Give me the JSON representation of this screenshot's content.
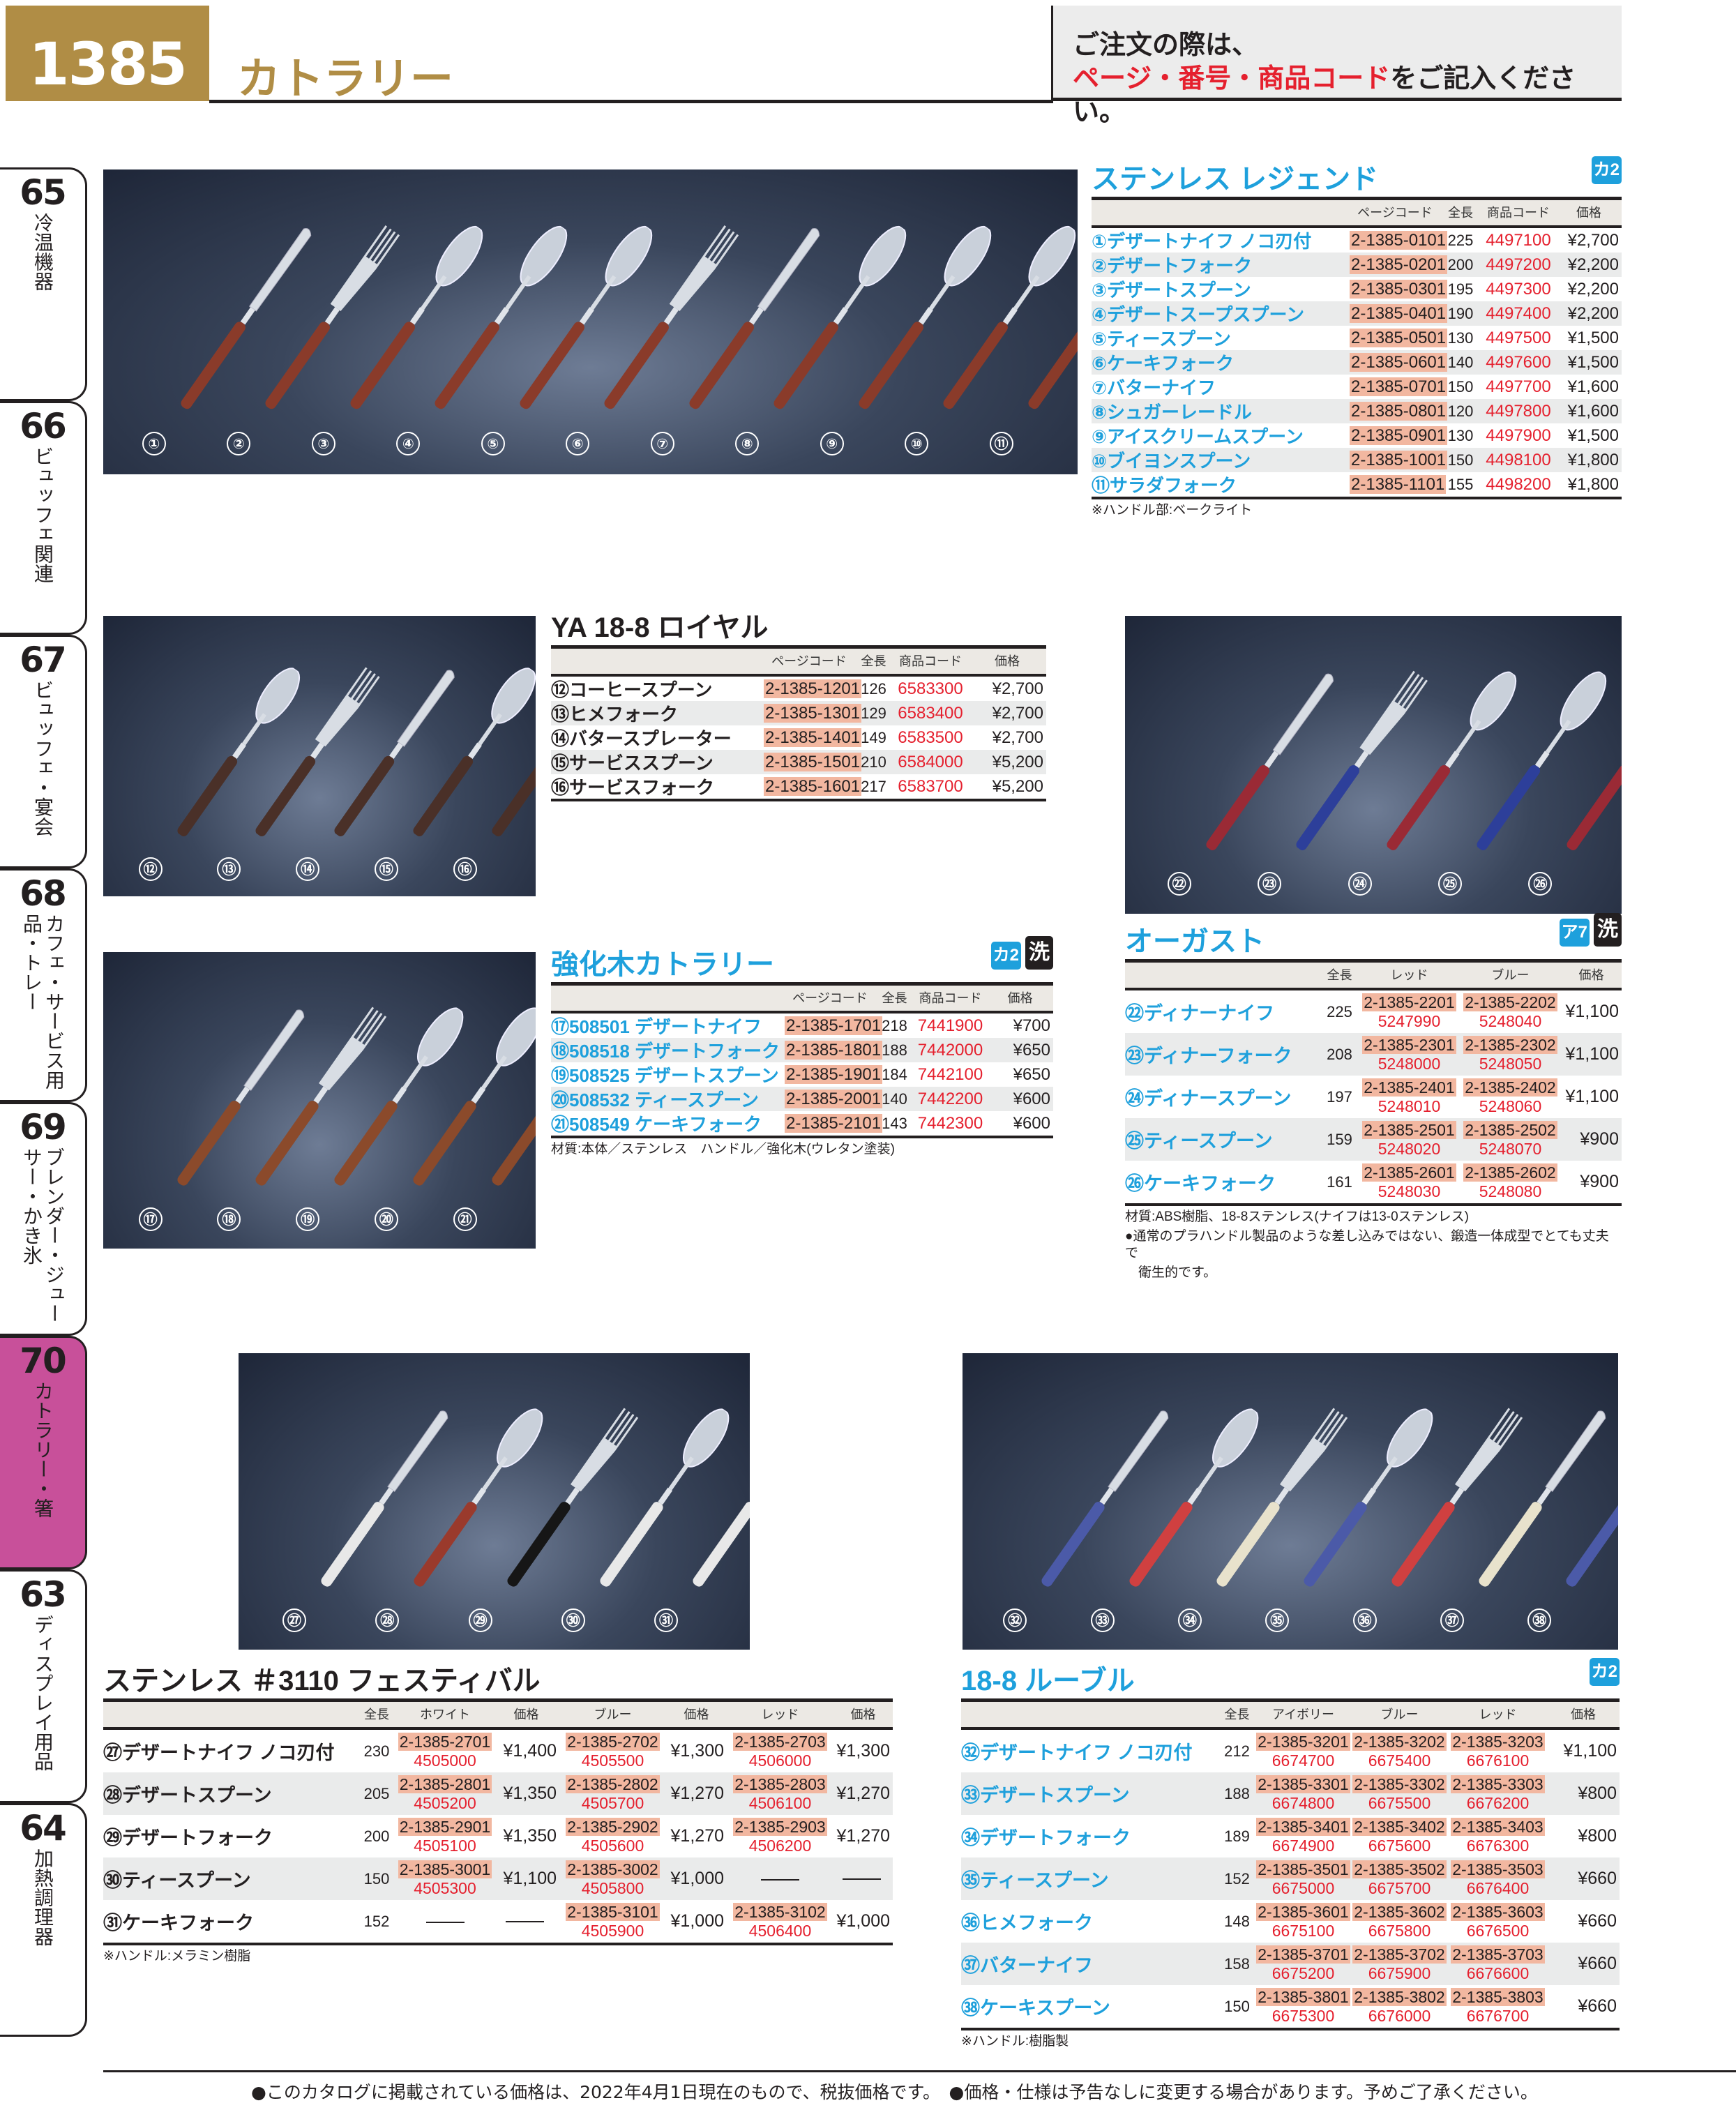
{
  "header": {
    "page_number": "1385",
    "title": "カトラリー",
    "notice_line1": "ご注文の際は、",
    "notice_red": "ページ・番号・商品コード",
    "notice_rest": "をご記入ください。"
  },
  "side_tabs": [
    {
      "num": "65",
      "label": "冷温機器",
      "active": false
    },
    {
      "num": "66",
      "label": "ビュッフェ関連",
      "active": false
    },
    {
      "num": "67",
      "label": "ビュッフェ・宴会",
      "active": false
    },
    {
      "num": "68",
      "label": "カフェ・サービス用品・トレー",
      "active": false
    },
    {
      "num": "69",
      "label": "ブレンダー・ジューサー・かき氷",
      "active": false
    },
    {
      "num": "70",
      "label": "カトラリー・箸",
      "active": true
    },
    {
      "num": "63",
      "label": "ディスプレイ用品",
      "active": false
    },
    {
      "num": "64",
      "label": "加熱調理器",
      "active": false
    }
  ],
  "colors": {
    "accent_blue": "#1ea0dc",
    "gold": "#b08d45",
    "red": "#e5202e",
    "code_highlight": "#f2b7a0",
    "active_tab": "#c8509a"
  },
  "photos": [
    {
      "items": [
        {
          "label": "①",
          "type": "knife",
          "handle": "#8a3b2a"
        },
        {
          "label": "②",
          "type": "fork",
          "handle": "#8a3b2a"
        },
        {
          "label": "③",
          "type": "spoon",
          "handle": "#8a3b2a"
        },
        {
          "label": "④",
          "type": "spoon",
          "handle": "#8a3b2a"
        },
        {
          "label": "⑤",
          "type": "spoon",
          "handle": "#8a3b2a"
        },
        {
          "label": "⑥",
          "type": "fork",
          "handle": "#8a3b2a"
        },
        {
          "label": "⑦",
          "type": "knife",
          "handle": "#8a3b2a"
        },
        {
          "label": "⑧",
          "type": "spoon",
          "handle": "#8a3b2a"
        },
        {
          "label": "⑨",
          "type": "spoon",
          "handle": "#8a3b2a"
        },
        {
          "label": "⑩",
          "type": "spoon",
          "handle": "#8a3b2a"
        },
        {
          "label": "⑪",
          "type": "fork",
          "handle": "#8a3b2a"
        }
      ]
    },
    {
      "items": [
        {
          "label": "⑫",
          "type": "spoon",
          "handle": "#4a3028"
        },
        {
          "label": "⑬",
          "type": "fork",
          "handle": "#4a3028"
        },
        {
          "label": "⑭",
          "type": "knife",
          "handle": "#4a3028"
        },
        {
          "label": "⑮",
          "type": "spoon",
          "handle": "#4a3028"
        },
        {
          "label": "⑯",
          "type": "fork",
          "handle": "#4a3028"
        }
      ]
    },
    {
      "items": [
        {
          "label": "㉒",
          "type": "knife",
          "handle": "#9a2a35"
        },
        {
          "label": "㉓",
          "type": "fork",
          "handle": "#2d3f9a"
        },
        {
          "label": "㉔",
          "type": "spoon",
          "handle": "#9a2a35"
        },
        {
          "label": "㉕",
          "type": "spoon",
          "handle": "#2d3f9a"
        },
        {
          "label": "㉖",
          "type": "fork",
          "handle": "#9a2a35"
        }
      ]
    },
    {
      "items": [
        {
          "label": "⑰",
          "type": "knife",
          "handle": "#8b4a2b"
        },
        {
          "label": "⑱",
          "type": "fork",
          "handle": "#8b4a2b"
        },
        {
          "label": "⑲",
          "type": "spoon",
          "handle": "#8b4a2b"
        },
        {
          "label": "⑳",
          "type": "spoon",
          "handle": "#8b4a2b"
        },
        {
          "label": "㉑",
          "type": "fork",
          "handle": "#8b4a2b"
        }
      ]
    },
    {
      "items": [
        {
          "label": "㉗",
          "type": "knife",
          "handle": "#e8e8e8"
        },
        {
          "label": "㉘",
          "type": "spoon",
          "handle": "#9a3a2c"
        },
        {
          "label": "㉙",
          "type": "fork",
          "handle": "#161616"
        },
        {
          "label": "㉚",
          "type": "spoon",
          "handle": "#e8e8e8"
        },
        {
          "label": "㉛",
          "type": "fork",
          "handle": "#e8e8e8"
        }
      ]
    },
    {
      "items": [
        {
          "label": "㉜",
          "type": "knife",
          "handle": "#4b5aa8"
        },
        {
          "label": "㉝",
          "type": "spoon",
          "handle": "#d04040"
        },
        {
          "label": "㉞",
          "type": "fork",
          "handle": "#e8e2cc"
        },
        {
          "label": "㉟",
          "type": "spoon",
          "handle": "#4b5aa8"
        },
        {
          "label": "㊱",
          "type": "fork",
          "handle": "#d04040"
        },
        {
          "label": "㊲",
          "type": "knife",
          "handle": "#e8e2cc"
        },
        {
          "label": "㊳",
          "type": "spoon",
          "handle": "#4b5aa8"
        }
      ]
    }
  ],
  "tables": {
    "legend": {
      "title": "ステンレス レジェンド",
      "badges": [
        {
          "label": "カ2",
          "style": "blue"
        }
      ],
      "columns": [
        "",
        "ページコード",
        "全長",
        "商品コード",
        "価格"
      ],
      "rows": [
        {
          "num": "①",
          "name": "デザートナイフ ノコ刃付",
          "page_code": "2-1385-0101",
          "length": "225",
          "product_code": "4497100",
          "price": "¥2,700"
        },
        {
          "num": "②",
          "name": "デザートフォーク",
          "page_code": "2-1385-0201",
          "length": "200",
          "product_code": "4497200",
          "price": "¥2,200"
        },
        {
          "num": "③",
          "name": "デザートスプーン",
          "page_code": "2-1385-0301",
          "length": "195",
          "product_code": "4497300",
          "price": "¥2,200"
        },
        {
          "num": "④",
          "name": "デザートスープスプーン",
          "page_code": "2-1385-0401",
          "length": "190",
          "product_code": "4497400",
          "price": "¥2,200"
        },
        {
          "num": "⑤",
          "name": "ティースプーン",
          "page_code": "2-1385-0501",
          "length": "130",
          "product_code": "4497500",
          "price": "¥1,500"
        },
        {
          "num": "⑥",
          "name": "ケーキフォーク",
          "page_code": "2-1385-0601",
          "length": "140",
          "product_code": "4497600",
          "price": "¥1,500"
        },
        {
          "num": "⑦",
          "name": "バターナイフ",
          "page_code": "2-1385-0701",
          "length": "150",
          "product_code": "4497700",
          "price": "¥1,600"
        },
        {
          "num": "⑧",
          "name": "シュガーレードル",
          "page_code": "2-1385-0801",
          "length": "120",
          "product_code": "4497800",
          "price": "¥1,600"
        },
        {
          "num": "⑨",
          "name": "アイスクリームスプーン",
          "page_code": "2-1385-0901",
          "length": "130",
          "product_code": "4497900",
          "price": "¥1,500"
        },
        {
          "num": "⑩",
          "name": "ブイヨンスプーン",
          "page_code": "2-1385-1001",
          "length": "150",
          "product_code": "4498100",
          "price": "¥1,800"
        },
        {
          "num": "⑪",
          "name": "サラダフォーク",
          "page_code": "2-1385-1101",
          "length": "155",
          "product_code": "4498200",
          "price": "¥1,800"
        }
      ],
      "notes": [
        "※ハンドル部:ベークライト"
      ]
    },
    "royal": {
      "title": "YA 18-8 ロイヤル",
      "badges": [],
      "columns": [
        "",
        "ページコード",
        "全長",
        "商品コード",
        "価格"
      ],
      "rows": [
        {
          "num": "⑫",
          "name": "コーヒースプーン",
          "page_code": "2-1385-1201",
          "length": "126",
          "product_code": "6583300",
          "price": "¥2,700"
        },
        {
          "num": "⑬",
          "name": "ヒメフォーク",
          "page_code": "2-1385-1301",
          "length": "129",
          "product_code": "6583400",
          "price": "¥2,700"
        },
        {
          "num": "⑭",
          "name": "バタースプレーター",
          "page_code": "2-1385-1401",
          "length": "149",
          "product_code": "6583500",
          "price": "¥2,700"
        },
        {
          "num": "⑮",
          "name": "サービススプーン",
          "page_code": "2-1385-1501",
          "length": "210",
          "product_code": "6584000",
          "price": "¥5,200"
        },
        {
          "num": "⑯",
          "name": "サービスフォーク",
          "page_code": "2-1385-1601",
          "length": "217",
          "product_code": "6583700",
          "price": "¥5,200"
        }
      ],
      "notes": []
    },
    "wood": {
      "title": "強化木カトラリー",
      "badges": [
        {
          "label": "カ2",
          "style": "blue"
        },
        {
          "label": "洗",
          "style": "black"
        }
      ],
      "columns": [
        "",
        "ページコード",
        "全長",
        "商品コード",
        "価格"
      ],
      "rows": [
        {
          "num": "⑰",
          "name": "508501 デザートナイフ",
          "page_code": "2-1385-1701",
          "length": "218",
          "product_code": "7441900",
          "price": "¥700"
        },
        {
          "num": "⑱",
          "name": "508518 デザートフォーク",
          "page_code": "2-1385-1801",
          "length": "188",
          "product_code": "7442000",
          "price": "¥650"
        },
        {
          "num": "⑲",
          "name": "508525 デザートスプーン",
          "page_code": "2-1385-1901",
          "length": "184",
          "product_code": "7442100",
          "price": "¥650"
        },
        {
          "num": "⑳",
          "name": "508532 ティースプーン",
          "page_code": "2-1385-2001",
          "length": "140",
          "product_code": "7442200",
          "price": "¥600"
        },
        {
          "num": "㉑",
          "name": "508549 ケーキフォーク",
          "page_code": "2-1385-2101",
          "length": "143",
          "product_code": "7442300",
          "price": "¥600"
        }
      ],
      "notes": [
        "材質:本体／ステンレス　ハンドル／強化木(ウレタン塗装)"
      ]
    },
    "august": {
      "title": "オーガスト",
      "badges": [
        {
          "label": "ア7",
          "style": "blue"
        },
        {
          "label": "洗",
          "style": "black"
        }
      ],
      "columns": [
        "",
        "全長",
        "レッド",
        "ブルー",
        "価格"
      ],
      "rows": [
        {
          "num": "㉒",
          "name": "ディナーナイフ",
          "length": "225",
          "variants": [
            {
              "page_code": "2-1385-2201",
              "product_code": "5247990"
            },
            {
              "page_code": "2-1385-2202",
              "product_code": "5248040"
            }
          ],
          "prices": [
            "¥1,100"
          ]
        },
        {
          "num": "㉓",
          "name": "ディナーフォーク",
          "length": "208",
          "variants": [
            {
              "page_code": "2-1385-2301",
              "product_code": "5248000"
            },
            {
              "page_code": "2-1385-2302",
              "product_code": "5248050"
            }
          ],
          "prices": [
            "¥1,100"
          ]
        },
        {
          "num": "㉔",
          "name": "ディナースプーン",
          "length": "197",
          "variants": [
            {
              "page_code": "2-1385-2401",
              "product_code": "5248010"
            },
            {
              "page_code": "2-1385-2402",
              "product_code": "5248060"
            }
          ],
          "prices": [
            "¥1,100"
          ]
        },
        {
          "num": "㉕",
          "name": "ティースプーン",
          "length": "159",
          "variants": [
            {
              "page_code": "2-1385-2501",
              "product_code": "5248020"
            },
            {
              "page_code": "2-1385-2502",
              "product_code": "5248070"
            }
          ],
          "prices": [
            "¥900"
          ]
        },
        {
          "num": "㉖",
          "name": "ケーキフォーク",
          "length": "161",
          "variants": [
            {
              "page_code": "2-1385-2601",
              "product_code": "5248030"
            },
            {
              "page_code": "2-1385-2602",
              "product_code": "5248080"
            }
          ],
          "prices": [
            "¥900"
          ]
        }
      ],
      "notes": [
        "材質:ABS樹脂、18-8ステンレス(ナイフは13-0ステンレス)",
        "●通常のプラハンドル製品のような差し込みではない、鍛造一体成型でとても丈夫で",
        "　衛生的です。"
      ]
    },
    "festival": {
      "title": "ステンレス ＃3110 フェスティバル",
      "badges": [],
      "columns": [
        "",
        "全長",
        "ホワイト",
        "価格",
        "ブルー",
        "価格",
        "レッド",
        "価格"
      ],
      "rows": [
        {
          "num": "㉗",
          "name": "デザートナイフ ノコ刃付",
          "length": "230",
          "variants": [
            {
              "page_code": "2-1385-2701",
              "product_code": "4505000"
            },
            {
              "page_code": "2-1385-2702",
              "product_code": "4505500"
            },
            {
              "page_code": "2-1385-2703",
              "product_code": "4506000"
            }
          ],
          "prices": [
            "¥1,400",
            "¥1,300",
            "¥1,300"
          ]
        },
        {
          "num": "㉘",
          "name": "デザートスプーン",
          "length": "205",
          "variants": [
            {
              "page_code": "2-1385-2801",
              "product_code": "4505200"
            },
            {
              "page_code": "2-1385-2802",
              "product_code": "4505700"
            },
            {
              "page_code": "2-1385-2803",
              "product_code": "4506100"
            }
          ],
          "prices": [
            "¥1,350",
            "¥1,270",
            "¥1,270"
          ]
        },
        {
          "num": "㉙",
          "name": "デザートフォーク",
          "length": "200",
          "variants": [
            {
              "page_code": "2-1385-2901",
              "product_code": "4505100"
            },
            {
              "page_code": "2-1385-2902",
              "product_code": "4505600"
            },
            {
              "page_code": "2-1385-2903",
              "product_code": "4506200"
            }
          ],
          "prices": [
            "¥1,350",
            "¥1,270",
            "¥1,270"
          ]
        },
        {
          "num": "㉚",
          "name": "ティースプーン",
          "length": "150",
          "variants": [
            {
              "page_code": "2-1385-3001",
              "product_code": "4505300"
            },
            {
              "page_code": "2-1385-3002",
              "product_code": "4505800"
            },
            null
          ],
          "prices": [
            "¥1,100",
            "¥1,000",
            null
          ]
        },
        {
          "num": "㉛",
          "name": "ケーキフォーク",
          "length": "152",
          "variants": [
            null,
            {
              "page_code": "2-1385-3101",
              "product_code": "4505900"
            },
            {
              "page_code": "2-1385-3102",
              "product_code": "4506400"
            }
          ],
          "prices": [
            null,
            "¥1,000",
            "¥1,000"
          ]
        }
      ],
      "notes": [
        "※ハンドル:メラミン樹脂"
      ]
    },
    "louvre": {
      "title": "18-8 ルーブル",
      "badges": [
        {
          "label": "カ2",
          "style": "blue"
        }
      ],
      "columns": [
        "",
        "全長",
        "アイボリー",
        "ブルー",
        "レッド",
        "価格"
      ],
      "rows": [
        {
          "num": "㉜",
          "name": "デザートナイフ ノコ刃付",
          "length": "212",
          "variants": [
            {
              "page_code": "2-1385-3201",
              "product_code": "6674700"
            },
            {
              "page_code": "2-1385-3202",
              "product_code": "6675400"
            },
            {
              "page_code": "2-1385-3203",
              "product_code": "6676100"
            }
          ],
          "prices": [
            "¥1,100"
          ]
        },
        {
          "num": "㉝",
          "name": "デザートスプーン",
          "length": "188",
          "variants": [
            {
              "page_code": "2-1385-3301",
              "product_code": "6674800"
            },
            {
              "page_code": "2-1385-3302",
              "product_code": "6675500"
            },
            {
              "page_code": "2-1385-3303",
              "product_code": "6676200"
            }
          ],
          "prices": [
            "¥800"
          ]
        },
        {
          "num": "㉞",
          "name": "デザートフォーク",
          "length": "189",
          "variants": [
            {
              "page_code": "2-1385-3401",
              "product_code": "6674900"
            },
            {
              "page_code": "2-1385-3402",
              "product_code": "6675600"
            },
            {
              "page_code": "2-1385-3403",
              "product_code": "6676300"
            }
          ],
          "prices": [
            "¥800"
          ]
        },
        {
          "num": "㉟",
          "name": "ティースプーン",
          "length": "152",
          "variants": [
            {
              "page_code": "2-1385-3501",
              "product_code": "6675000"
            },
            {
              "page_code": "2-1385-3502",
              "product_code": "6675700"
            },
            {
              "page_code": "2-1385-3503",
              "product_code": "6676400"
            }
          ],
          "prices": [
            "¥660"
          ]
        },
        {
          "num": "㊱",
          "name": "ヒメフォーク",
          "length": "148",
          "variants": [
            {
              "page_code": "2-1385-3601",
              "product_code": "6675100"
            },
            {
              "page_code": "2-1385-3602",
              "product_code": "6675800"
            },
            {
              "page_code": "2-1385-3603",
              "product_code": "6676500"
            }
          ],
          "prices": [
            "¥660"
          ]
        },
        {
          "num": "㊲",
          "name": "バターナイフ",
          "length": "158",
          "variants": [
            {
              "page_code": "2-1385-3701",
              "product_code": "6675200"
            },
            {
              "page_code": "2-1385-3702",
              "product_code": "6675900"
            },
            {
              "page_code": "2-1385-3703",
              "product_code": "6676600"
            }
          ],
          "prices": [
            "¥660"
          ]
        },
        {
          "num": "㊳",
          "name": "ケーキスプーン",
          "length": "150",
          "variants": [
            {
              "page_code": "2-1385-3801",
              "product_code": "6675300"
            },
            {
              "page_code": "2-1385-3802",
              "product_code": "6676000"
            },
            {
              "page_code": "2-1385-3803",
              "product_code": "6676700"
            }
          ],
          "prices": [
            "¥660"
          ]
        }
      ],
      "notes": [
        "※ハンドル:樹脂製"
      ]
    }
  },
  "footer": {
    "text": "●このカタログに掲載されている価格は、2022年4月1日現在のもので、税抜価格です。　●価格・仕様は予告なしに変更する場合があります。予めご了承ください。"
  }
}
